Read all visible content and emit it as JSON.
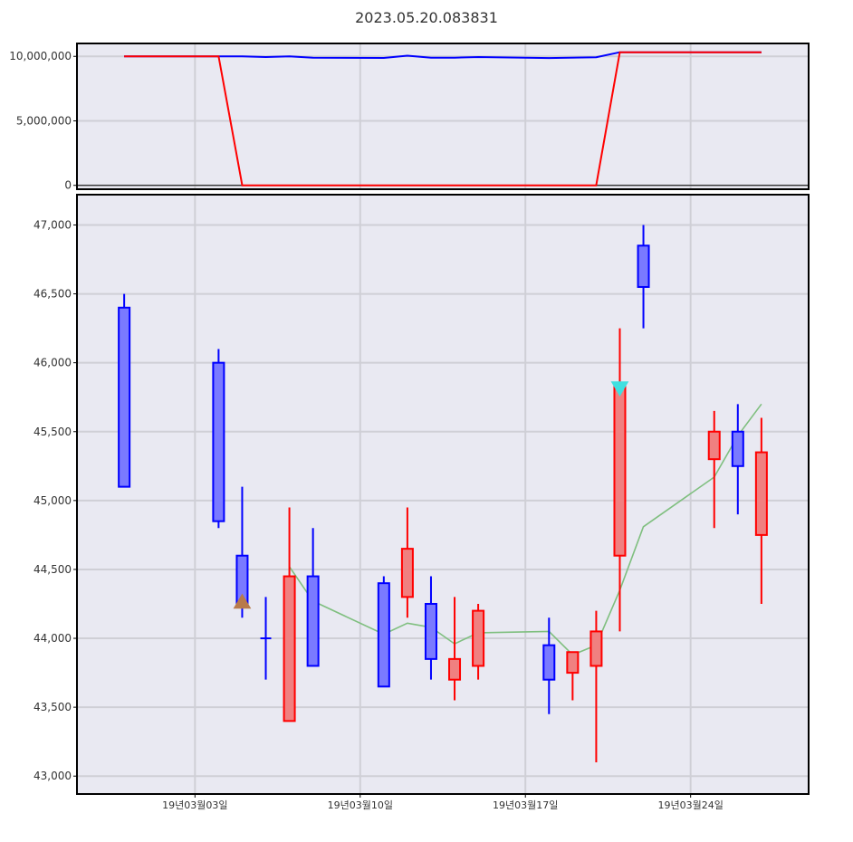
{
  "title": "2023.05.20.083831",
  "colors": {
    "panel_bg": "#e9e9f2",
    "grid": "#cfcfd6",
    "up": "#ff0000",
    "up_fill": "#f08080",
    "down": "#0000ff",
    "down_fill": "#7a7aff",
    "ma": "#7fbf7f",
    "buy_marker": "#b87a4b",
    "sell_marker": "#40e0e0"
  },
  "chart_data": [
    {
      "type": "line",
      "panel": "top",
      "x_range": [
        -2,
        29
      ],
      "ylim": [
        -300000,
        11000000
      ],
      "y_ticks": [
        0,
        5000000,
        10000000
      ],
      "y_tick_labels": [
        "0",
        "5,000,000",
        "10,000,000"
      ],
      "grid": true,
      "series": [
        {
          "color": "#0000ff",
          "points": [
            [
              0,
              10000000
            ],
            [
              4,
              10000000
            ],
            [
              5,
              10000000
            ],
            [
              6,
              9950000
            ],
            [
              7,
              10000000
            ],
            [
              8,
              9900000
            ],
            [
              11,
              9880000
            ],
            [
              12,
              10050000
            ],
            [
              13,
              9900000
            ],
            [
              14,
              9900000
            ],
            [
              15,
              9950000
            ],
            [
              17,
              9900000
            ],
            [
              18,
              9870000
            ],
            [
              20,
              9930000
            ],
            [
              21,
              10320000
            ],
            [
              27,
              10320000
            ]
          ]
        },
        {
          "color": "#ff0000",
          "points": [
            [
              0,
              10000000
            ],
            [
              4,
              10000000
            ],
            [
              5,
              0
            ],
            [
              20,
              0
            ],
            [
              21,
              10320000
            ],
            [
              27,
              10320000
            ]
          ]
        }
      ]
    },
    {
      "type": "candlestick",
      "panel": "bottom",
      "x_range": [
        -2,
        29
      ],
      "ylim": [
        42870,
        47220
      ],
      "y_ticks": [
        43000,
        43500,
        44000,
        44500,
        45000,
        45500,
        46000,
        46500,
        47000
      ],
      "y_tick_labels": [
        "43,000",
        "43,500",
        "44,000",
        "44,500",
        "45,000",
        "45,500",
        "46,000",
        "46,500",
        "47,000"
      ],
      "x_ticks": [
        3,
        10,
        17,
        24
      ],
      "x_tick_labels": [
        "19년03월03일",
        "19년03월10일",
        "19년03월17일",
        "19년03월24일"
      ],
      "grid": true,
      "candles": [
        {
          "x": 0,
          "open": 46400,
          "high": 46500,
          "low": 45100,
          "close": 45100
        },
        {
          "x": 4,
          "open": 46000,
          "high": 46100,
          "low": 44800,
          "close": 44850
        },
        {
          "x": 5,
          "open": 44600,
          "high": 45100,
          "low": 44150,
          "close": 44250
        },
        {
          "x": 6,
          "open": 44000,
          "high": 44300,
          "low": 43700,
          "close": 44000
        },
        {
          "x": 7,
          "open": 43400,
          "high": 44950,
          "low": 43400,
          "close": 44450
        },
        {
          "x": 8,
          "open": 44450,
          "high": 44800,
          "low": 43800,
          "close": 43800
        },
        {
          "x": 11,
          "open": 44400,
          "high": 44450,
          "low": 43650,
          "close": 43650
        },
        {
          "x": 12,
          "open": 44300,
          "high": 44950,
          "low": 44150,
          "close": 44650
        },
        {
          "x": 13,
          "open": 44250,
          "high": 44450,
          "low": 43700,
          "close": 43850
        },
        {
          "x": 14,
          "open": 43700,
          "high": 44300,
          "low": 43550,
          "close": 43850
        },
        {
          "x": 15,
          "open": 43800,
          "high": 44250,
          "low": 43700,
          "close": 44200
        },
        {
          "x": 18,
          "open": 43950,
          "high": 44150,
          "low": 43450,
          "close": 43700
        },
        {
          "x": 19,
          "open": 43750,
          "high": 43900,
          "low": 43550,
          "close": 43900
        },
        {
          "x": 20,
          "open": 43800,
          "high": 44200,
          "low": 43100,
          "close": 44050
        },
        {
          "x": 21,
          "open": 44600,
          "high": 46250,
          "low": 44050,
          "close": 45850
        },
        {
          "x": 22,
          "open": 46850,
          "high": 47000,
          "low": 46250,
          "close": 46550
        },
        {
          "x": 25,
          "open": 45300,
          "high": 45650,
          "low": 44800,
          "close": 45500
        },
        {
          "x": 26,
          "open": 45500,
          "high": 45700,
          "low": 44900,
          "close": 45250
        },
        {
          "x": 27,
          "open": 44750,
          "high": 45600,
          "low": 44250,
          "close": 45350
        }
      ],
      "moving_average": [
        [
          7,
          44520
        ],
        [
          8,
          44270
        ],
        [
          11,
          44030
        ],
        [
          12,
          44110
        ],
        [
          13,
          44080
        ],
        [
          14,
          43960
        ],
        [
          15,
          44040
        ],
        [
          18,
          44050
        ],
        [
          19,
          43880
        ],
        [
          20,
          43950
        ],
        [
          21,
          44350
        ],
        [
          22,
          44810
        ],
        [
          25,
          45170
        ],
        [
          26,
          45470
        ],
        [
          27,
          45700
        ]
      ],
      "markers": [
        {
          "kind": "buy",
          "shape": "triangle-up",
          "x": 5,
          "y": 44260
        },
        {
          "kind": "sell",
          "shape": "triangle-down",
          "x": 21,
          "y": 45820
        }
      ]
    }
  ]
}
